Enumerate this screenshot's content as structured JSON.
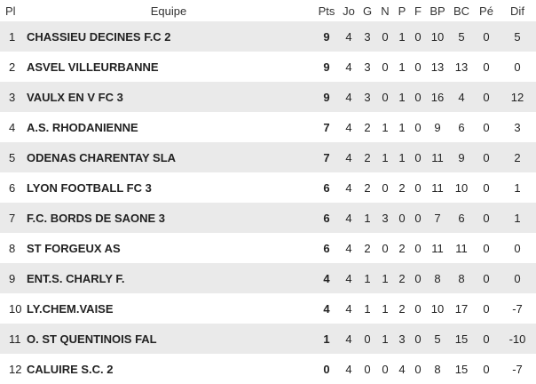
{
  "headers": {
    "pl": "Pl",
    "team": "Equipe",
    "pts": "Pts",
    "jo": "Jo",
    "g": "G",
    "n": "N",
    "p": "P",
    "f": "F",
    "bp": "BP",
    "bc": "BC",
    "pe": "Pé",
    "dif": "Dif"
  },
  "rows": [
    {
      "pl": "1",
      "team": "CHASSIEU DECINES F.C 2",
      "pts": "9",
      "jo": "4",
      "g": "3",
      "n": "0",
      "p": "1",
      "f": "0",
      "bp": "10",
      "bc": "5",
      "pe": "0",
      "dif": "5"
    },
    {
      "pl": "2",
      "team": "ASVEL VILLEURBANNE",
      "pts": "9",
      "jo": "4",
      "g": "3",
      "n": "0",
      "p": "1",
      "f": "0",
      "bp": "13",
      "bc": "13",
      "pe": "0",
      "dif": "0"
    },
    {
      "pl": "3",
      "team": "VAULX EN V FC 3",
      "pts": "9",
      "jo": "4",
      "g": "3",
      "n": "0",
      "p": "1",
      "f": "0",
      "bp": "16",
      "bc": "4",
      "pe": "0",
      "dif": "12"
    },
    {
      "pl": "4",
      "team": "A.S. RHODANIENNE",
      "pts": "7",
      "jo": "4",
      "g": "2",
      "n": "1",
      "p": "1",
      "f": "0",
      "bp": "9",
      "bc": "6",
      "pe": "0",
      "dif": "3"
    },
    {
      "pl": "5",
      "team": "ODENAS CHARENTAY SLA",
      "pts": "7",
      "jo": "4",
      "g": "2",
      "n": "1",
      "p": "1",
      "f": "0",
      "bp": "11",
      "bc": "9",
      "pe": "0",
      "dif": "2"
    },
    {
      "pl": "6",
      "team": "LYON FOOTBALL FC 3",
      "pts": "6",
      "jo": "4",
      "g": "2",
      "n": "0",
      "p": "2",
      "f": "0",
      "bp": "11",
      "bc": "10",
      "pe": "0",
      "dif": "1"
    },
    {
      "pl": "7",
      "team": "F.C. BORDS DE SAONE 3",
      "pts": "6",
      "jo": "4",
      "g": "1",
      "n": "3",
      "p": "0",
      "f": "0",
      "bp": "7",
      "bc": "6",
      "pe": "0",
      "dif": "1"
    },
    {
      "pl": "8",
      "team": "ST FORGEUX AS",
      "pts": "6",
      "jo": "4",
      "g": "2",
      "n": "0",
      "p": "2",
      "f": "0",
      "bp": "11",
      "bc": "11",
      "pe": "0",
      "dif": "0"
    },
    {
      "pl": "9",
      "team": "ENT.S. CHARLY F.",
      "pts": "4",
      "jo": "4",
      "g": "1",
      "n": "1",
      "p": "2",
      "f": "0",
      "bp": "8",
      "bc": "8",
      "pe": "0",
      "dif": "0"
    },
    {
      "pl": "10",
      "team": "LY.CHEM.VAISE",
      "pts": "4",
      "jo": "4",
      "g": "1",
      "n": "1",
      "p": "2",
      "f": "0",
      "bp": "10",
      "bc": "17",
      "pe": "0",
      "dif": "-7"
    },
    {
      "pl": "11",
      "team": "O. ST QUENTINOIS FAL",
      "pts": "1",
      "jo": "4",
      "g": "0",
      "n": "1",
      "p": "3",
      "f": "0",
      "bp": "5",
      "bc": "15",
      "pe": "0",
      "dif": "-10"
    },
    {
      "pl": "12",
      "team": "CALUIRE S.C. 2",
      "pts": "0",
      "jo": "4",
      "g": "0",
      "n": "0",
      "p": "4",
      "f": "0",
      "bp": "8",
      "bc": "15",
      "pe": "0",
      "dif": "-7"
    }
  ]
}
